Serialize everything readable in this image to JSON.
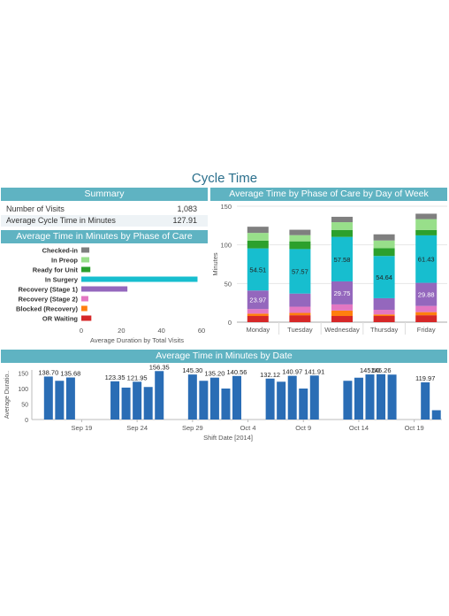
{
  "page_title": "Cycle Time",
  "summary": {
    "header": "Summary",
    "rows": [
      {
        "label": "Number of Visits",
        "value": "1,083"
      },
      {
        "label": "Average Cycle Time in Minutes",
        "value": "127.91"
      }
    ]
  },
  "phase_panel": {
    "header": "Average Time in Minutes by Phase of Care"
  },
  "day_panel": {
    "header": "Average Time by Phase of Care by Day of Week"
  },
  "date_panel": {
    "header": "Average Time in Minutes by Date"
  },
  "colors": {
    "Checked-in": "#7f7f7f",
    "In Preop": "#98df8a",
    "Ready for Unit": "#2ca02c",
    "In Surgery": "#17becf",
    "Recovery (Stage 1)": "#9467bd",
    "Recovery (Stage 2)": "#e377c2",
    "Blocked (Recovery)": "#ff7f0e",
    "OR Waiting": "#d62728",
    "date_bar": "#2a6db5",
    "header_bg": "#5fb3c2"
  },
  "chart_data": [
    {
      "id": "phase",
      "type": "bar",
      "orientation": "horizontal",
      "categories": [
        "Checked-in",
        "In Preop",
        "Ready for Unit",
        "In Surgery",
        "Recovery (Stage 1)",
        "Recovery (Stage 2)",
        "Blocked (Recovery)",
        "OR Waiting"
      ],
      "values": [
        4,
        4,
        4.5,
        58,
        23,
        3.5,
        3,
        5
      ],
      "xlabel": "Average Duration by Total Visits",
      "xlim": [
        0,
        60
      ],
      "xticks": [
        "0",
        "20",
        "40",
        "60"
      ]
    },
    {
      "id": "day",
      "type": "bar",
      "stacked": true,
      "categories": [
        "Monday",
        "Tuesday",
        "Wednesday",
        "Thursday",
        "Friday"
      ],
      "ylabel": "Minutes",
      "ylim": [
        0,
        150
      ],
      "yticks": [
        "0",
        "50",
        "100",
        "150"
      ],
      "series": [
        {
          "name": "OR Waiting",
          "values": [
            8,
            9,
            8,
            8,
            9
          ]
        },
        {
          "name": "Blocked (Recovery)",
          "values": [
            3,
            3,
            7,
            2,
            4
          ]
        },
        {
          "name": "Recovery (Stage 2)",
          "values": [
            6,
            8,
            8,
            6,
            8
          ]
        },
        {
          "name": "Recovery (Stage 1)",
          "values": [
            23.97,
            17,
            29.75,
            15,
            29.88
          ]
        },
        {
          "name": "In Surgery",
          "values": [
            54.51,
            57.57,
            57.58,
            54.64,
            61.43
          ]
        },
        {
          "name": "Ready for Unit",
          "values": [
            10,
            10,
            9,
            10,
            7
          ]
        },
        {
          "name": "In Preop",
          "values": [
            10,
            8,
            10,
            10,
            14
          ]
        },
        {
          "name": "Checked-in",
          "values": [
            8,
            7,
            7,
            8,
            7
          ]
        }
      ],
      "data_labels": [
        {
          "series": "In Surgery",
          "values": [
            "54.51",
            "57.57",
            "57.58",
            "54.64",
            "61.43"
          ]
        },
        {
          "series": "Recovery (Stage 1)",
          "values": [
            "23.97",
            "",
            "29.75",
            "",
            "29.88"
          ]
        }
      ]
    },
    {
      "id": "date",
      "type": "bar",
      "xlabel": "Shift Date [2014]",
      "ylabel": "Average Duratio..",
      "ylim": [
        0,
        160
      ],
      "yticks": [
        "0",
        "50",
        "100",
        "150"
      ],
      "xticks": [
        "Sep 19",
        "Sep 24",
        "Sep 29",
        "Oct 4",
        "Oct 9",
        "Oct 14",
        "Oct 19"
      ],
      "x": [
        "2014-09-16",
        "2014-09-17",
        "2014-09-18",
        "2014-09-22",
        "2014-09-23",
        "2014-09-24",
        "2014-09-25",
        "2014-09-26",
        "2014-09-29",
        "2014-09-30",
        "2014-10-01",
        "2014-10-02",
        "2014-10-03",
        "2014-10-06",
        "2014-10-07",
        "2014-10-08",
        "2014-10-09",
        "2014-10-10",
        "2014-10-13",
        "2014-10-14",
        "2014-10-15",
        "2014-10-16",
        "2014-10-17",
        "2014-10-20",
        "2014-10-21"
      ],
      "values": [
        138.7,
        125,
        135.68,
        123.35,
        103,
        121.95,
        105,
        156.35,
        145.3,
        125,
        135.2,
        100,
        140.56,
        132.12,
        122,
        140.97,
        100,
        141.91,
        125,
        135,
        145.5,
        146.26,
        145,
        119.97,
        30
      ],
      "labels": [
        "138.70",
        "",
        "135.68",
        "123.35",
        "",
        "121.95",
        "",
        "156.35",
        "145.30",
        "",
        "135.20",
        "",
        "140.56",
        "132.12",
        "",
        "140.97",
        "",
        "141.91",
        "",
        "",
        "145.50",
        "146.26",
        "",
        "119.97",
        ""
      ]
    }
  ]
}
